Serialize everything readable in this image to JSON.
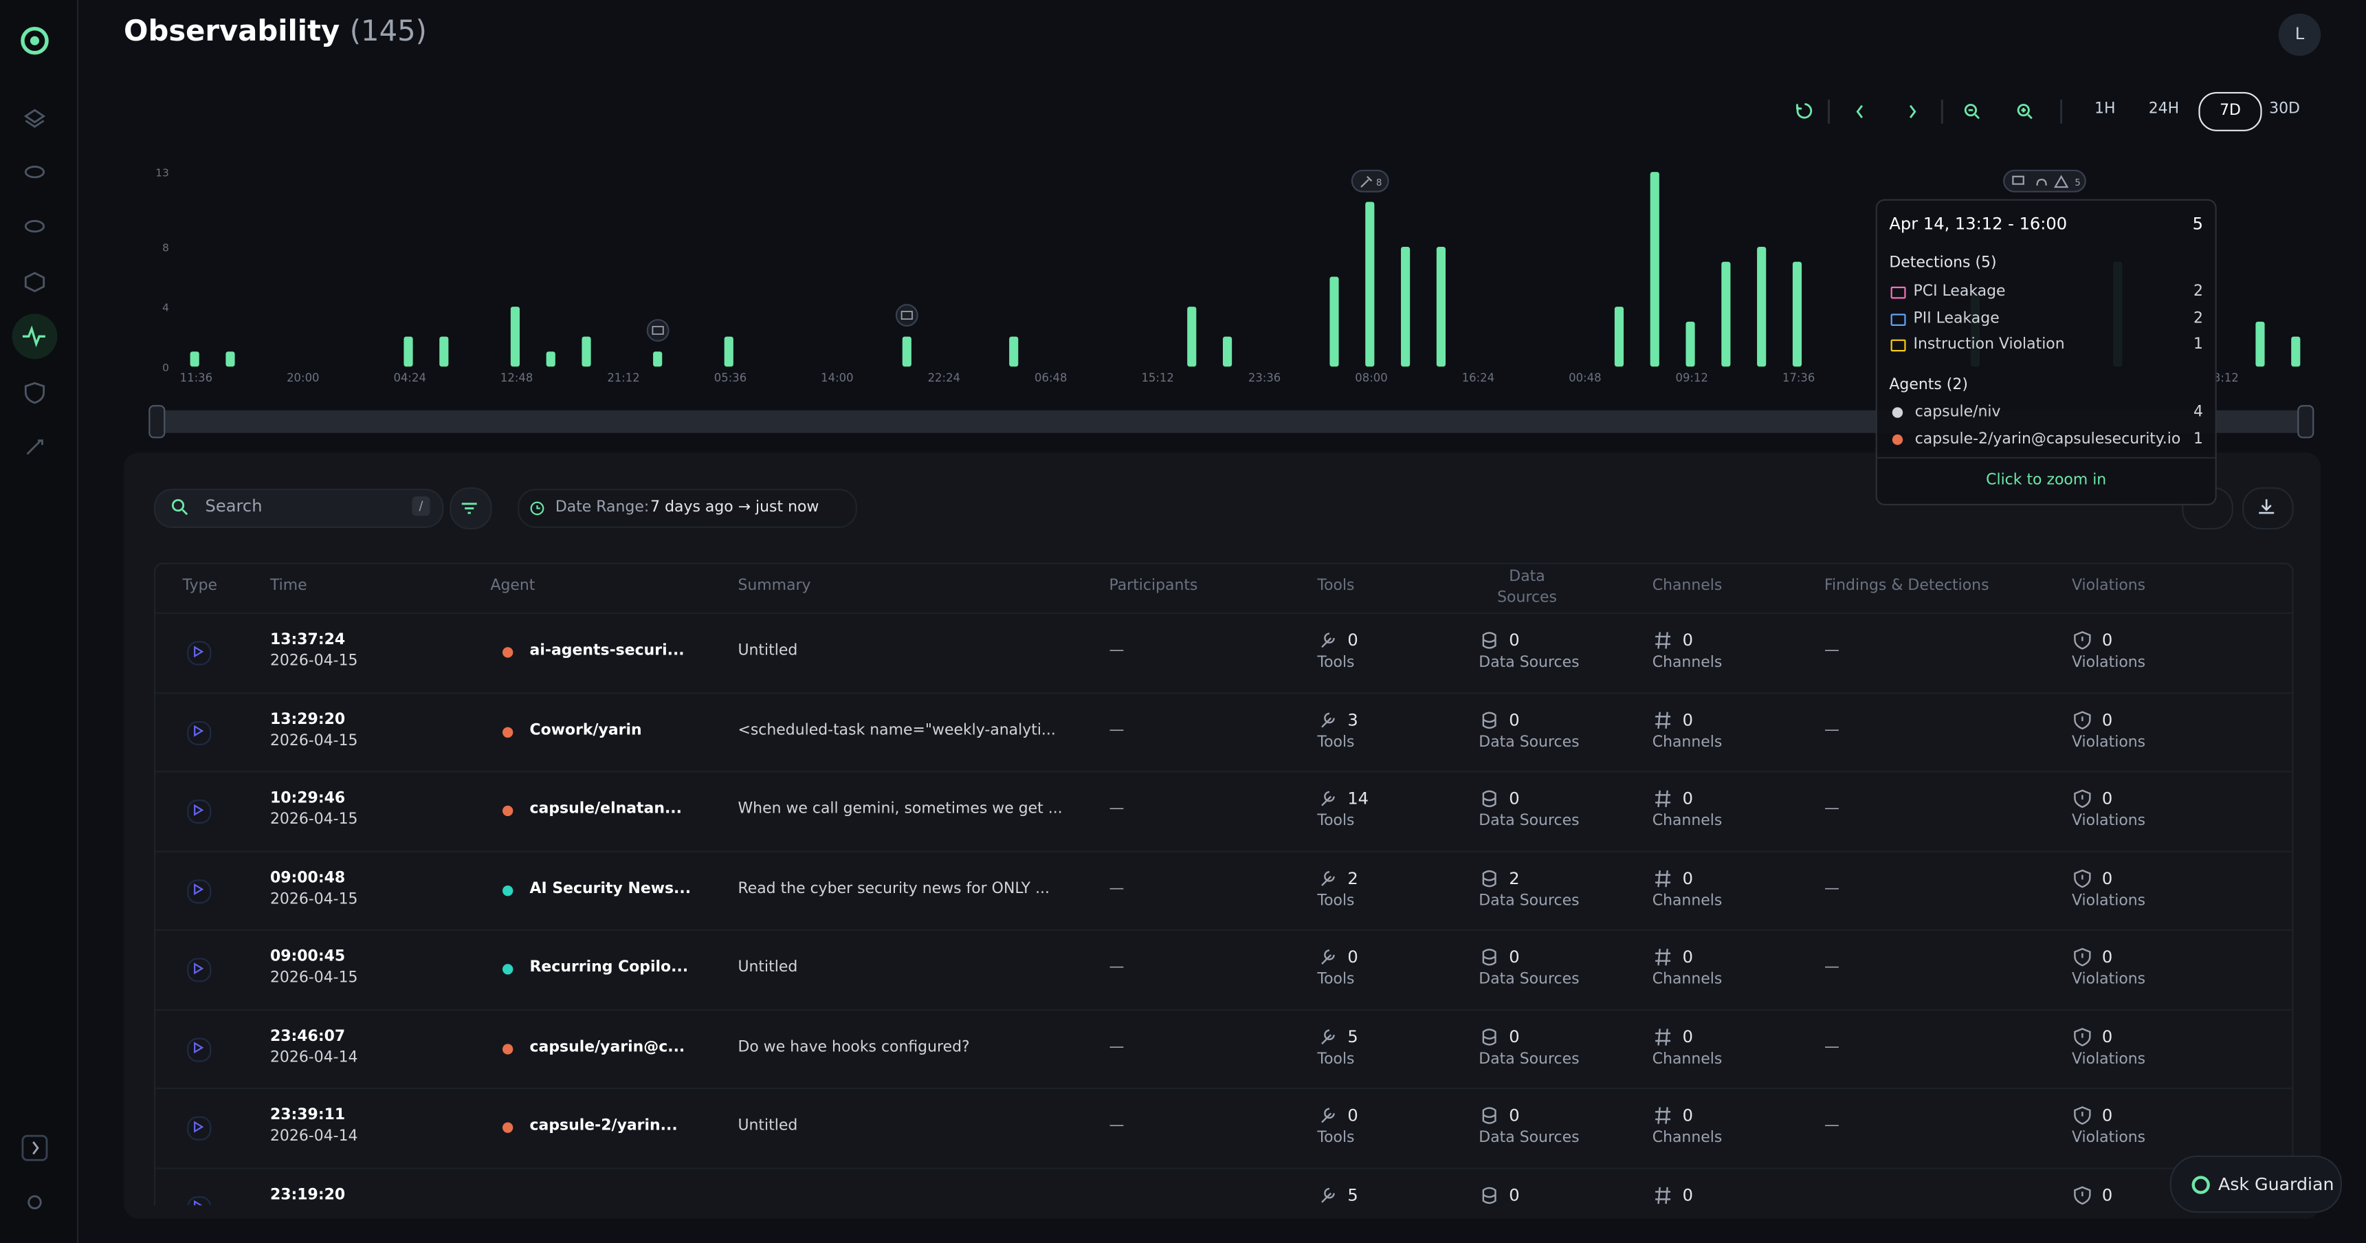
{
  "header": {
    "title": "Observability",
    "count": "(145)",
    "avatar": "L"
  },
  "toolbar": {
    "ranges": [
      "1H",
      "24H",
      "7D",
      "30D"
    ],
    "active": "7D"
  },
  "chart_data": {
    "type": "bar",
    "color": "#6ee7a8",
    "categories": [
      "11:36",
      null,
      null,
      "20:00",
      null,
      null,
      "04:24",
      null,
      null,
      "12:48",
      null,
      null,
      "21:12",
      null,
      null,
      "05:36",
      null,
      null,
      "14:00",
      null,
      null,
      "22:24",
      null,
      null,
      "06:48",
      null,
      null,
      "15:12",
      null,
      null,
      "23:36",
      null,
      null,
      "08:00",
      null,
      null,
      "16:24",
      null,
      null,
      "00:48",
      null,
      null,
      "09:12",
      null,
      null,
      "17:36",
      null,
      null,
      null,
      null,
      null,
      null,
      null,
      null,
      null,
      null,
      null,
      "3:12",
      null,
      null
    ],
    "values": [
      1,
      1,
      0,
      0,
      0,
      0,
      2,
      2,
      0,
      4,
      1,
      2,
      0,
      1,
      0,
      2,
      0,
      0,
      0,
      0,
      2,
      0,
      0,
      2,
      0,
      0,
      0,
      0,
      4,
      2,
      0,
      0,
      6,
      11,
      8,
      8,
      0,
      0,
      0,
      0,
      4,
      13,
      3,
      7,
      8,
      7,
      0,
      0,
      0,
      0,
      5,
      0,
      0,
      0,
      7,
      0,
      0,
      0,
      3,
      2
    ],
    "ylim": [
      0,
      13
    ],
    "yticks": [
      0,
      4,
      8,
      13
    ],
    "annotations": [
      "8",
      "5"
    ]
  },
  "tooltip": {
    "range": "Apr 14, 13:12 - 16:00",
    "total": "5",
    "detections_title": "Detections (5)",
    "detections": [
      {
        "name": "PCI Leakage",
        "count": "2",
        "color": "#f472b6"
      },
      {
        "name": "PII Leakage",
        "count": "2",
        "color": "#60a5fa"
      },
      {
        "name": "Instruction Violation",
        "count": "1",
        "color": "#facc15"
      }
    ],
    "agents_title": "Agents (2)",
    "agents": [
      {
        "name": "capsule/niv",
        "count": "4",
        "color": "#d4d4d8"
      },
      {
        "name": "capsule-2/yarin@capsulesecurity.io",
        "count": "1",
        "color": "#e8704a"
      }
    ],
    "action": "Click to zoom in"
  },
  "filters": {
    "search": "Search",
    "shortcut": "/",
    "date_label": "Date Range:",
    "date_value": "7 days ago → just now"
  },
  "table": {
    "columns": [
      "Type",
      "Time",
      "Agent",
      "Summary",
      "Participants",
      "Tools",
      "Data Sources",
      "Channels",
      "Findings & Detections",
      "Violations"
    ],
    "units": {
      "tools": "Tools",
      "data_sources": "Data Sources",
      "channels": "Channels",
      "violations": "Violations"
    },
    "rows": [
      {
        "time": "13:37:24",
        "date": "2026-04-15",
        "agent": "ai-agents-securi...",
        "icon": "#e8704a",
        "summary": "Untitled",
        "participants": "—",
        "tools": "0",
        "data_sources": "0",
        "channels": "0",
        "findings": "—",
        "violations": "0"
      },
      {
        "time": "13:29:20",
        "date": "2026-04-15",
        "agent": "Cowork/yarin",
        "icon": "#e8704a",
        "summary": "<scheduled-task name=\"weekly-analyti...",
        "participants": "—",
        "tools": "3",
        "data_sources": "0",
        "channels": "0",
        "findings": "—",
        "violations": "0"
      },
      {
        "time": "10:29:46",
        "date": "2026-04-15",
        "agent": "capsule/elnatan...",
        "icon": "#e8704a",
        "summary": "When we call gemini, sometimes we get ...",
        "participants": "—",
        "tools": "14",
        "data_sources": "0",
        "channels": "0",
        "findings": "—",
        "violations": "0"
      },
      {
        "time": "09:00:48",
        "date": "2026-04-15",
        "agent": "AI Security News...",
        "icon": "#2dd4bf",
        "summary": "Read the cyber security news for ONLY ...",
        "participants": "—",
        "tools": "2",
        "data_sources": "2",
        "channels": "0",
        "findings": "—",
        "violations": "0"
      },
      {
        "time": "09:00:45",
        "date": "2026-04-15",
        "agent": "Recurring Copilo...",
        "icon": "#2dd4bf",
        "summary": "Untitled",
        "participants": "—",
        "tools": "0",
        "data_sources": "0",
        "channels": "0",
        "findings": "—",
        "violations": "0"
      },
      {
        "time": "23:46:07",
        "date": "2026-04-14",
        "agent": "capsule/yarin@c...",
        "icon": "#e8704a",
        "summary": "Do we have hooks configured?",
        "participants": "—",
        "tools": "5",
        "data_sources": "0",
        "channels": "0",
        "findings": "—",
        "violations": "0"
      },
      {
        "time": "23:39:11",
        "date": "2026-04-14",
        "agent": "capsule-2/yarin...",
        "icon": "#e8704a",
        "summary": "Untitled",
        "participants": "—",
        "tools": "0",
        "data_sources": "0",
        "channels": "0",
        "findings": "—",
        "violations": "0"
      },
      {
        "time": "23:19:20",
        "tools": "5",
        "data_sources": "0",
        "channels": "0",
        "violations": "0"
      }
    ]
  },
  "assistant": "Ask Guardian"
}
